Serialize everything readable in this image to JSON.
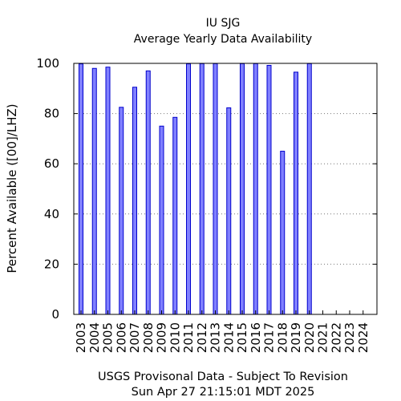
{
  "chart_data": {
    "type": "bar",
    "title": "IU SJG",
    "subtitle": "Average Yearly Data Availability",
    "xlabel": "",
    "ylabel": "Percent Available ([00]/LHZ)",
    "ylim": [
      0,
      100
    ],
    "yticks": [
      0,
      20,
      40,
      60,
      80,
      100
    ],
    "grid": "horizontal-dotted",
    "legend": "none",
    "bar_color": "#8080ff",
    "bar_edge_color": "#0000cc",
    "categories": [
      "2003",
      "2004",
      "2005",
      "2006",
      "2007",
      "2008",
      "2009",
      "2010",
      "2011",
      "2012",
      "2013",
      "2014",
      "2015",
      "2016",
      "2017",
      "2018",
      "2019",
      "2020",
      "2021",
      "2022",
      "2023",
      "2024"
    ],
    "values": [
      99.8,
      98,
      98.5,
      82.5,
      90.5,
      97,
      75,
      78.5,
      99.8,
      99.9,
      99.9,
      82.3,
      99.9,
      99.9,
      99.2,
      65,
      96.5,
      99.9,
      null,
      null,
      null,
      null
    ],
    "footer_line1": "USGS Provisonal Data - Subject To Revision",
    "footer_line2": "Sun Apr 27 21:15:01 MDT 2025"
  }
}
